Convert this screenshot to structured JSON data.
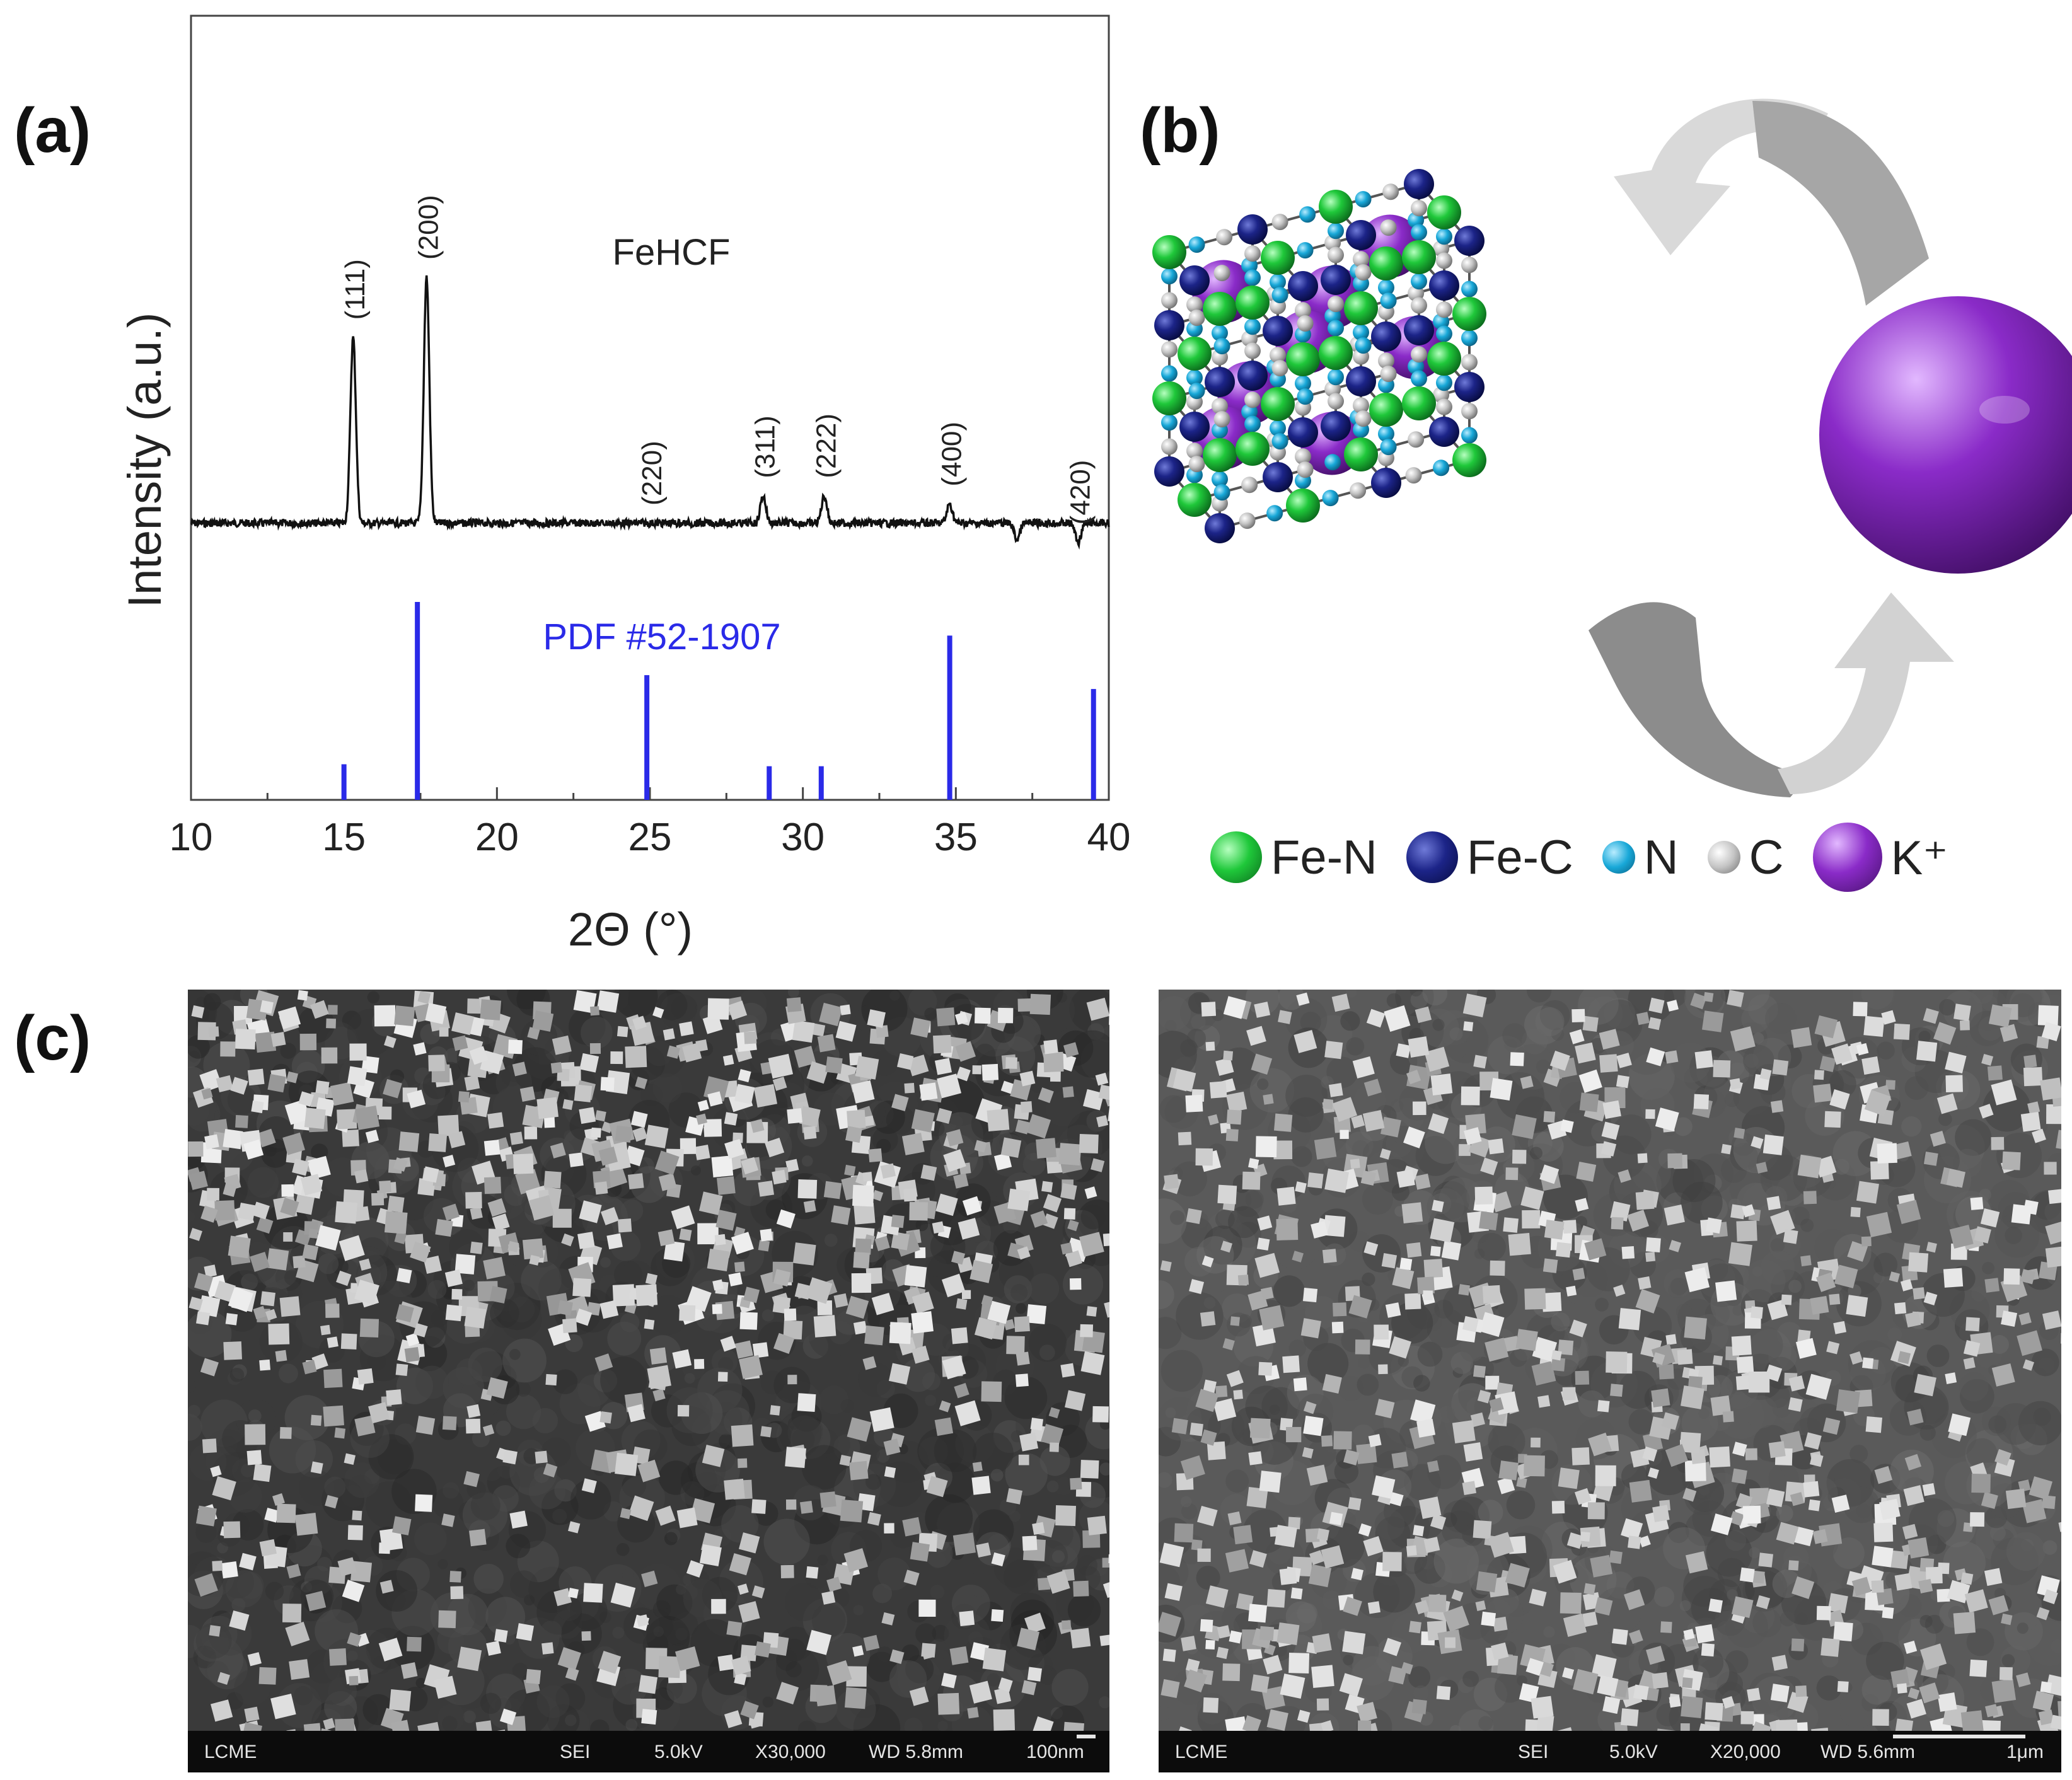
{
  "panels": {
    "a": "(a)",
    "b": "(b)",
    "c": "(c)"
  },
  "chart_data": {
    "type": "line",
    "xlabel": "2Θ (°)",
    "ylabel": "Intensity (a.u.)",
    "xlim": [
      10,
      40
    ],
    "x_ticks": [
      "10",
      "15",
      "20",
      "25",
      "30",
      "35",
      "40"
    ],
    "grid": false,
    "series": [
      {
        "name": "FeHCF",
        "kind": "pattern",
        "baseline": 0.1,
        "peaks": [
          {
            "x": 15.3,
            "y": 0.78,
            "label": "(111)"
          },
          {
            "x": 17.7,
            "y": 1.0,
            "label": "(200)"
          },
          {
            "x": 25.0,
            "y": 0.1,
            "label": "(220)"
          },
          {
            "x": 28.7,
            "y": 0.2,
            "label": "(311)"
          },
          {
            "x": 30.7,
            "y": 0.2,
            "label": "(222)"
          },
          {
            "x": 34.8,
            "y": 0.17,
            "label": "(400)"
          },
          {
            "x": 37.0,
            "y": 0.04,
            "label": ""
          },
          {
            "x": 39.0,
            "y": 0.03,
            "label": "(420)"
          }
        ]
      },
      {
        "name": "PDF #52-1907",
        "kind": "sticks",
        "color": "#2a2ae8",
        "sticks": [
          {
            "x": 15.0,
            "y": 0.18
          },
          {
            "x": 17.4,
            "y": 1.0
          },
          {
            "x": 24.9,
            "y": 0.63
          },
          {
            "x": 28.9,
            "y": 0.17
          },
          {
            "x": 30.6,
            "y": 0.17
          },
          {
            "x": 34.8,
            "y": 0.83
          },
          {
            "x": 39.5,
            "y": 0.56
          }
        ]
      }
    ]
  },
  "legend": {
    "items": [
      {
        "label": "Fe-N",
        "color": "#1fc83a",
        "icon": "green-sphere"
      },
      {
        "label": "Fe-C",
        "color": "#1c2488",
        "icon": "navy-sphere"
      },
      {
        "label": "N",
        "color": "#18a8d8",
        "icon": "cyan-sphere"
      },
      {
        "label": "C",
        "color": "#b8b8b8",
        "icon": "gray-sphere"
      },
      {
        "label": "K⁺",
        "color": "#8a2bc8",
        "icon": "purple-sphere"
      }
    ]
  },
  "sem": [
    {
      "lab": "LCME",
      "mode": "SEI",
      "kv": "5.0kV",
      "mag": "X30,000",
      "wd": "WD 5.8mm",
      "scale": "100nm"
    },
    {
      "lab": "LCME",
      "mode": "SEI",
      "kv": "5.0kV",
      "mag": "X20,000",
      "wd": "WD 5.6mm",
      "scale": "1μm"
    }
  ]
}
